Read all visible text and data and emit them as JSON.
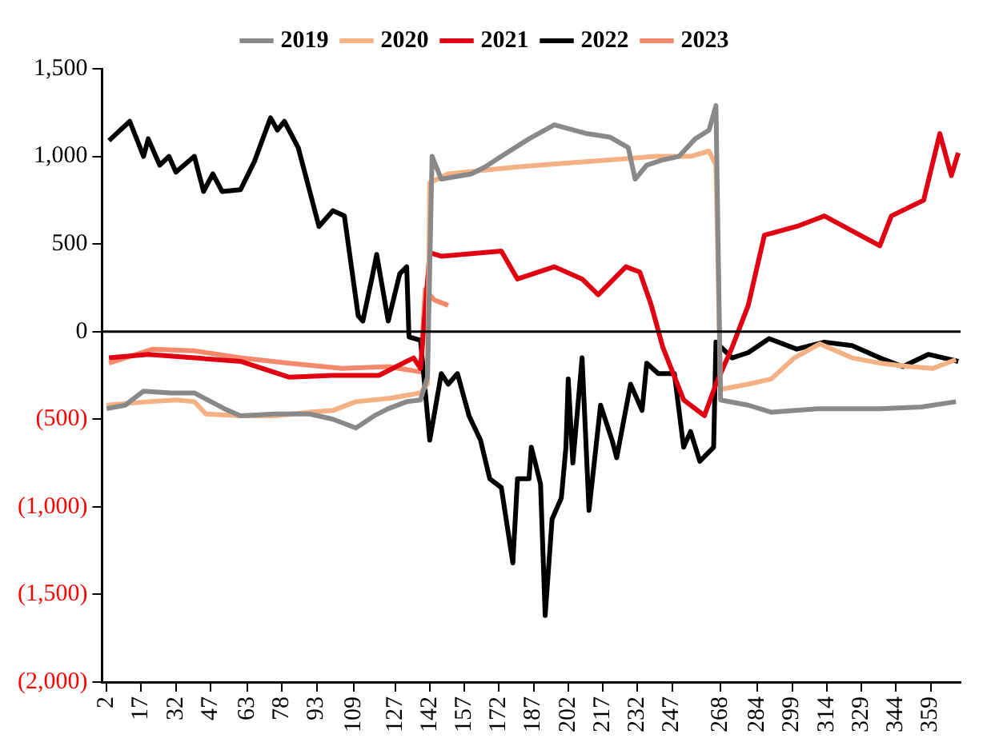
{
  "chart_data": {
    "type": "line",
    "legend": "top",
    "grid": false,
    "marker": "none",
    "line_style": "solid",
    "xlim": [
      0,
      372
    ],
    "xticks": [
      2,
      17,
      32,
      47,
      63,
      78,
      93,
      109,
      127,
      142,
      157,
      172,
      187,
      202,
      217,
      232,
      247,
      268,
      284,
      299,
      314,
      329,
      344,
      359
    ],
    "ylim": [
      -2000,
      1500
    ],
    "yticks": [
      {
        "value": -2000,
        "label": "(2,000)"
      },
      {
        "value": -1500,
        "label": "(1,500)"
      },
      {
        "value": -1000,
        "label": "(1,000)"
      },
      {
        "value": -500,
        "label": "(500)"
      },
      {
        "value": 0,
        "label": "0"
      },
      {
        "value": 500,
        "label": "500"
      },
      {
        "value": 1000,
        "label": "1,000"
      },
      {
        "value": 1500,
        "label": "1,500"
      }
    ],
    "ref_lines": [
      {
        "axis": "y",
        "value": 0,
        "color": "#000000"
      }
    ],
    "series": [
      {
        "name": "2019",
        "color": "#898989",
        "x": [
          2,
          10,
          18,
          30,
          40,
          53,
          60,
          75,
          90,
          100,
          110,
          118,
          124,
          132,
          138,
          141,
          143,
          147,
          160,
          166,
          173,
          185,
          196,
          210,
          220,
          228,
          231,
          236,
          243,
          250,
          257,
          263,
          266,
          268,
          280,
          290,
          310,
          337,
          355,
          370
        ],
        "values": [
          -440,
          -420,
          -340,
          -350,
          -350,
          -440,
          -480,
          -470,
          -470,
          -500,
          -550,
          -480,
          -440,
          -400,
          -390,
          -260,
          1000,
          870,
          900,
          940,
          1000,
          1100,
          1180,
          1130,
          1110,
          1050,
          870,
          950,
          980,
          1000,
          1100,
          1150,
          1290,
          -390,
          -420,
          -460,
          -440,
          -440,
          -430,
          -400
        ]
      },
      {
        "name": "2020",
        "color": "#f4b183",
        "x": [
          2,
          20,
          32,
          40,
          45,
          60,
          75,
          90,
          100,
          110,
          125,
          138,
          141,
          142,
          150,
          165,
          180,
          200,
          220,
          240,
          255,
          263,
          266,
          268,
          280,
          290,
          300,
          311,
          325,
          337,
          350,
          360,
          370
        ],
        "values": [
          -420,
          -400,
          -390,
          -400,
          -470,
          -480,
          -480,
          -460,
          -450,
          -400,
          -380,
          -350,
          -300,
          850,
          900,
          920,
          940,
          960,
          980,
          1000,
          1000,
          1030,
          950,
          -330,
          -300,
          -270,
          -150,
          -70,
          -150,
          -180,
          -200,
          -210,
          -160
        ]
      },
      {
        "name": "2021",
        "color": "#e00012",
        "x": [
          3,
          20,
          40,
          60,
          81,
          100,
          120,
          135,
          138,
          142,
          147,
          165,
          173,
          180,
          196,
          208,
          215,
          227,
          233,
          238,
          243,
          252,
          261,
          266,
          273,
          280,
          287,
          301,
          313,
          337,
          342,
          356,
          363,
          368,
          371
        ],
        "values": [
          -150,
          -130,
          -150,
          -170,
          -260,
          -250,
          -250,
          -150,
          -210,
          450,
          430,
          450,
          460,
          300,
          370,
          300,
          210,
          370,
          340,
          150,
          -90,
          -390,
          -480,
          -300,
          -90,
          150,
          550,
          600,
          660,
          490,
          660,
          750,
          1130,
          890,
          1020
        ]
      },
      {
        "name": "2022",
        "color": "#000000",
        "x": [
          3,
          12,
          18,
          20,
          25,
          29,
          32,
          40,
          44,
          48,
          52,
          60,
          66,
          73,
          76,
          79,
          85,
          91,
          94,
          100,
          105,
          111,
          113,
          117,
          119,
          124,
          129,
          132,
          133,
          138,
          142,
          147,
          150,
          154,
          159,
          164,
          168,
          173,
          178,
          180,
          185,
          186,
          190,
          192,
          195,
          199,
          201,
          202,
          204,
          208,
          211,
          216,
          221,
          223,
          229,
          234,
          236,
          241,
          248,
          252,
          255,
          259,
          265,
          266,
          273,
          280,
          289,
          301,
          313,
          325,
          337,
          347,
          358,
          371
        ],
        "values": [
          1090,
          1200,
          1000,
          1100,
          950,
          1000,
          910,
          1000,
          800,
          900,
          800,
          810,
          970,
          1220,
          1150,
          1200,
          1050,
          750,
          600,
          690,
          660,
          90,
          60,
          310,
          440,
          60,
          330,
          370,
          -30,
          -50,
          -620,
          -240,
          -300,
          -240,
          -480,
          -620,
          -840,
          -890,
          -1320,
          -840,
          -840,
          -660,
          -870,
          -1620,
          -1070,
          -950,
          -660,
          -270,
          -750,
          -150,
          -1020,
          -420,
          -620,
          -720,
          -300,
          -450,
          -180,
          -240,
          -240,
          -660,
          -570,
          -740,
          -660,
          -60,
          -150,
          -120,
          -40,
          -100,
          -60,
          -80,
          -150,
          -200,
          -130,
          -170
        ]
      },
      {
        "name": "2023",
        "color": "#f4896b",
        "x": [
          3,
          22,
          40,
          60,
          81,
          104,
          124,
          138,
          140,
          144,
          150
        ],
        "values": [
          -180,
          -100,
          -110,
          -150,
          -180,
          -210,
          -200,
          -230,
          240,
          180,
          150
        ]
      }
    ]
  }
}
